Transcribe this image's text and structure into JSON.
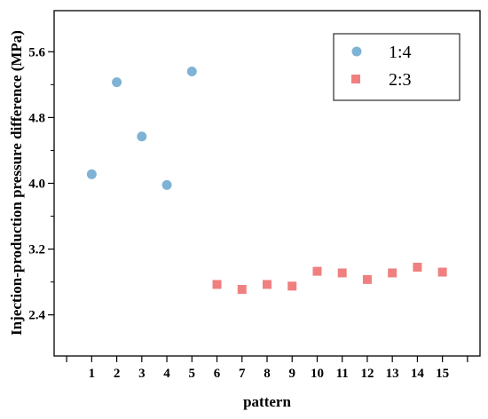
{
  "chart_data": {
    "type": "scatter",
    "xlabel": "pattern",
    "ylabel": "Injection-production pressure difference (MPa)",
    "xlim": [
      -0.5,
      16.5
    ],
    "ylim": [
      1.9,
      6.1
    ],
    "x_ticks": [
      1,
      2,
      3,
      4,
      5,
      6,
      7,
      8,
      9,
      10,
      11,
      12,
      13,
      14,
      15
    ],
    "y_ticks": [
      2.4,
      3.2,
      4.0,
      4.8,
      5.6
    ],
    "y_tick_labels": [
      "2.4",
      "3.2",
      "4.0",
      "4.8",
      "5.6"
    ],
    "grid": false,
    "legend_position": "top-right",
    "series": [
      {
        "name": "1:4",
        "marker": "circle",
        "color": "#7fb3d5",
        "x": [
          1,
          2,
          3,
          4,
          5
        ],
        "y": [
          4.11,
          5.23,
          4.57,
          3.98,
          5.36
        ]
      },
      {
        "name": "2:3",
        "marker": "square",
        "color": "#f08080",
        "x": [
          6,
          7,
          8,
          9,
          10,
          11,
          12,
          13,
          14,
          15
        ],
        "y": [
          2.77,
          2.71,
          2.77,
          2.75,
          2.93,
          2.91,
          2.83,
          2.91,
          2.98,
          2.92
        ]
      }
    ]
  }
}
